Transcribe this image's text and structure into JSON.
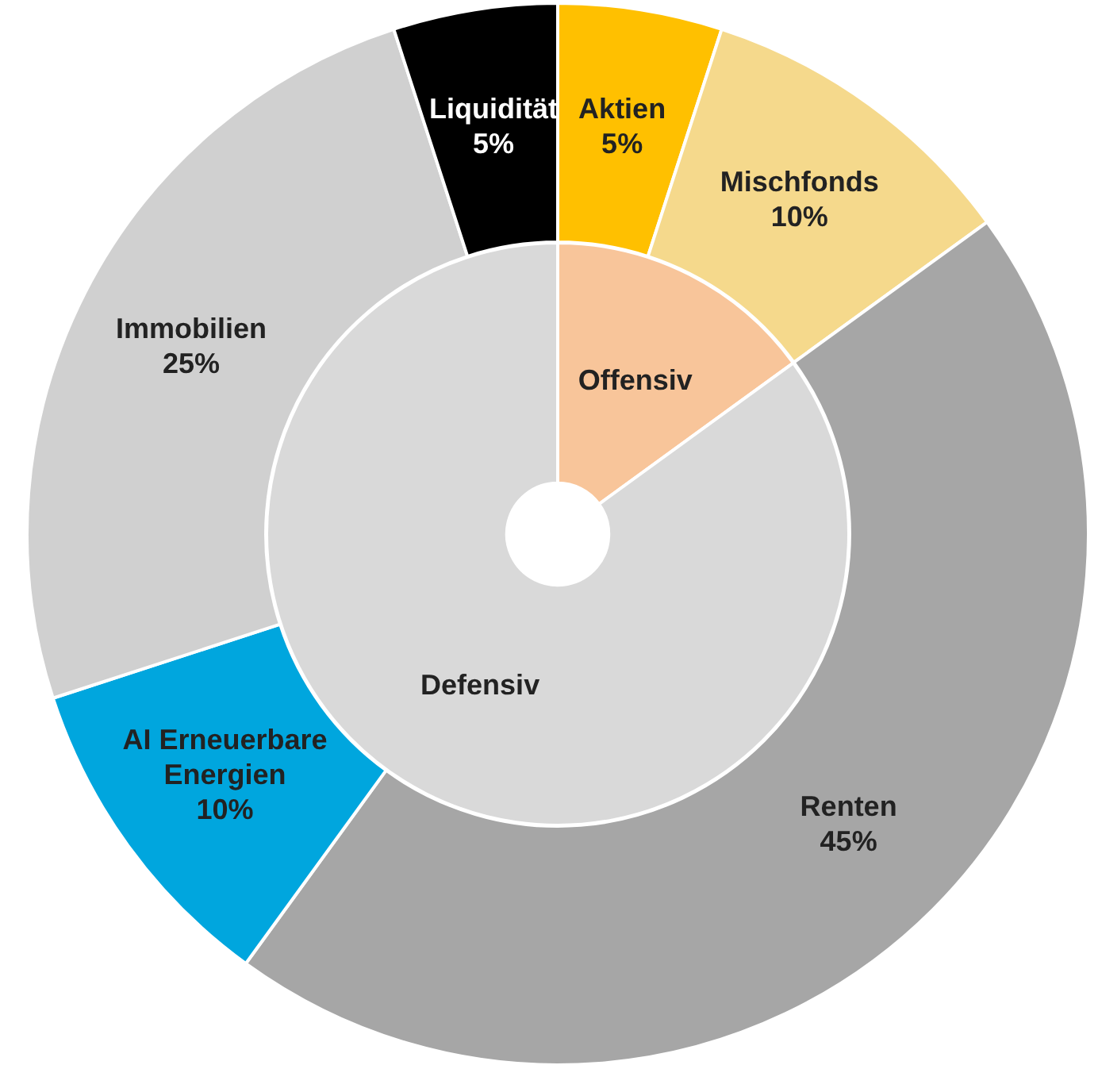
{
  "chart_data": [
    {
      "type": "donut",
      "categories": [
        "Aktien",
        "Mischfonds",
        "Renten",
        "AI Erneuerbare Energien",
        "Immobilien",
        "Liquidität"
      ],
      "values": [
        5,
        10,
        45,
        10,
        25,
        5
      ],
      "value_labels": [
        "5%",
        "10%",
        "45%",
        "10%",
        "25%",
        "5%"
      ],
      "colors": [
        "#ffc000",
        "#f5d98c",
        "#a6a6a6",
        "#00a6de",
        "#d0d0d0",
        "#000000"
      ],
      "legend": false
    },
    {
      "type": "donut",
      "categories": [
        "Offensiv",
        "Defensiv"
      ],
      "values": [
        15,
        85
      ],
      "colors": [
        "#f8c59a",
        "#d9d9d9"
      ],
      "legend": false
    }
  ]
}
